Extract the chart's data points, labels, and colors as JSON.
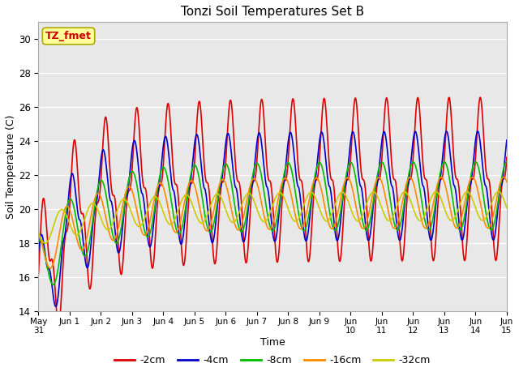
{
  "title": "Tonzi Soil Temperatures Set B",
  "xlabel": "Time",
  "ylabel": "Soil Temperature (C)",
  "ylim": [
    14,
    31
  ],
  "yticks": [
    14,
    16,
    18,
    20,
    22,
    24,
    26,
    28,
    30
  ],
  "plot_bg_color": "#e8e8e8",
  "annotation_text": "TZ_fmet",
  "annotation_color": "#cc0000",
  "annotation_bg": "#ffff99",
  "annotation_border": "#aaaa00",
  "series": [
    {
      "label": "-2cm",
      "color": "#dd0000",
      "lw": 1.2
    },
    {
      "label": "-4cm",
      "color": "#0000cc",
      "lw": 1.2
    },
    {
      "label": "-8cm",
      "color": "#00bb00",
      "lw": 1.2
    },
    {
      "label": "-16cm",
      "color": "#ff8800",
      "lw": 1.2
    },
    {
      "label": "-32cm",
      "color": "#cccc00",
      "lw": 1.2
    }
  ],
  "x_start": 0,
  "x_end": 15,
  "num_points": 1500,
  "figsize": [
    6.4,
    4.8
  ],
  "dpi": 100,
  "xtick_positions": [
    0,
    1,
    2,
    3,
    4,
    5,
    6,
    7,
    8,
    9,
    10,
    11,
    12,
    13,
    14,
    15
  ],
  "xtick_labels": [
    "May\n31",
    "Jun 1",
    "Jun 2",
    "Jun 3",
    "Jun 4",
    "Jun 5",
    "Jun 6",
    "Jun 7",
    "Jun 8",
    "Jun 9",
    "Jun\n10",
    "Jun\n11",
    "Jun\n12",
    "Jun\n13",
    "Jun\n14",
    "Jun\n15"
  ]
}
